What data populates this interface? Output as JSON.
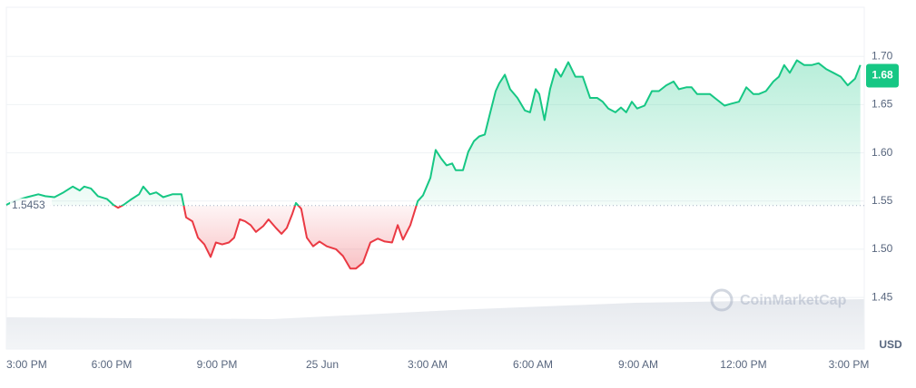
{
  "chart_data": {
    "type": "line",
    "x": [
      0,
      0.21,
      0.59,
      0.91,
      1.11,
      1.37,
      1.63,
      1.89,
      2.09,
      2.22,
      2.41,
      2.61,
      2.87,
      3.05,
      3.18,
      3.34,
      3.57,
      3.78,
      3.9,
      4.09,
      4.27,
      4.47,
      4.73,
      4.99,
      5.12,
      5.3,
      5.46,
      5.64,
      5.82,
      5.97,
      6.15,
      6.34,
      6.49,
      6.65,
      6.8,
      6.96,
      7.11,
      7.32,
      7.47,
      7.68,
      7.84,
      7.99,
      8.15,
      8.25,
      8.4,
      8.56,
      8.74,
      8.92,
      9.13,
      9.39,
      9.59,
      9.8,
      9.96,
      10.16,
      10.37,
      10.58,
      10.78,
      10.99,
      11.15,
      11.3,
      11.51,
      11.72,
      11.87,
      12.08,
      12.23,
      12.39,
      12.54,
      12.7,
      12.8,
      13.01,
      13.16,
      13.32,
      13.47,
      13.63,
      13.78,
      13.94,
      14.04,
      14.2,
      14.35,
      14.56,
      14.77,
      14.92,
      15.08,
      15.18,
      15.33,
      15.49,
      15.65,
      15.8,
      16.01,
      16.21,
      16.42,
      16.63,
      16.83,
      16.99,
      17.15,
      17.35,
      17.51,
      17.66,
      17.82,
      17.97,
      18.18,
      18.39,
      18.59,
      18.8,
      19.01,
      19.16,
      19.37,
      19.52,
      19.68,
      19.89,
      20.04,
      20.25,
      20.46,
      20.66,
      20.87,
      21.08,
      21.28,
      21.44,
      21.64,
      21.85,
      22.01,
      22.16,
      22.32,
      22.52,
      22.73,
      22.94,
      23.14,
      23.35,
      23.56,
      23.77,
      23.97,
      24.18,
      24.33
    ],
    "values": [
      1.546,
      1.55,
      1.554,
      1.557,
      1.555,
      1.554,
      1.559,
      1.565,
      1.561,
      1.565,
      1.563,
      1.555,
      1.552,
      1.546,
      1.543,
      1.546,
      1.552,
      1.557,
      1.565,
      1.557,
      1.559,
      1.554,
      1.557,
      1.557,
      1.533,
      1.529,
      1.512,
      1.505,
      1.492,
      1.507,
      1.505,
      1.507,
      1.512,
      1.531,
      1.529,
      1.525,
      1.518,
      1.524,
      1.531,
      1.522,
      1.516,
      1.522,
      1.537,
      1.548,
      1.542,
      1.512,
      1.503,
      1.508,
      1.503,
      1.5,
      1.493,
      1.48,
      1.48,
      1.486,
      1.507,
      1.511,
      1.508,
      1.507,
      1.525,
      1.51,
      1.525,
      1.55,
      1.556,
      1.574,
      1.603,
      1.594,
      1.587,
      1.589,
      1.582,
      1.582,
      1.601,
      1.612,
      1.617,
      1.619,
      1.641,
      1.664,
      1.672,
      1.681,
      1.666,
      1.657,
      1.644,
      1.642,
      1.666,
      1.661,
      1.634,
      1.666,
      1.687,
      1.679,
      1.694,
      1.679,
      1.679,
      1.657,
      1.657,
      1.653,
      1.646,
      1.642,
      1.647,
      1.642,
      1.653,
      1.646,
      1.649,
      1.664,
      1.664,
      1.67,
      1.674,
      1.666,
      1.668,
      1.668,
      1.661,
      1.661,
      1.661,
      1.655,
      1.649,
      1.651,
      1.653,
      1.668,
      1.661,
      1.661,
      1.664,
      1.674,
      1.679,
      1.691,
      1.683,
      1.696,
      1.691,
      1.691,
      1.693,
      1.687,
      1.683,
      1.679,
      1.67,
      1.677,
      1.691
    ],
    "baseline": 1.5453,
    "current_price": 1.68,
    "up_color": "#16c784",
    "down_color": "#ea3943",
    "xlim": [
      0,
      24.44
    ],
    "xticks": [
      {
        "value": 0,
        "label": "3:00 PM"
      },
      {
        "value": 3,
        "label": "6:00 PM"
      },
      {
        "value": 6,
        "label": "9:00 PM"
      },
      {
        "value": 9,
        "label": "25 Jun"
      },
      {
        "value": 12,
        "label": "3:00 AM"
      },
      {
        "value": 15,
        "label": "6:00 AM"
      },
      {
        "value": 18,
        "label": "9:00 AM"
      },
      {
        "value": 21,
        "label": "12:00 PM"
      },
      {
        "value": 24,
        "label": "3:00 PM"
      }
    ],
    "ylim": [
      1.3965,
      1.751
    ],
    "yticks": [
      1.45,
      {
        "value": 1.5,
        "label": "1.50"
      },
      1.55,
      {
        "value": 1.6,
        "label": "1.60"
      },
      1.65,
      {
        "value": 1.7,
        "label": "1.70"
      }
    ],
    "grid": true,
    "currency": "USD",
    "watermark": "CoinMarketCap"
  }
}
